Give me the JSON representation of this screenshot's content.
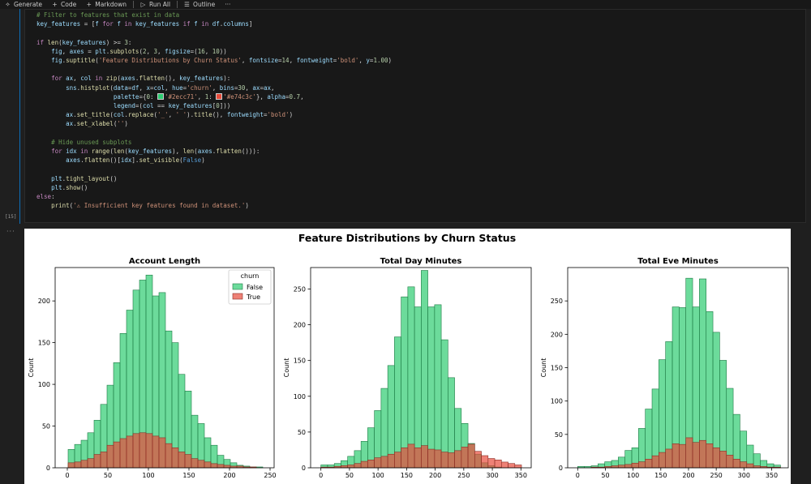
{
  "toolbar": {
    "items": [
      {
        "label": "Generate",
        "icon": "sparkle-icon"
      },
      {
        "label": "Code",
        "icon": "plus-icon"
      },
      {
        "label": "Markdown",
        "icon": "plus-icon"
      },
      {
        "label": "Run All",
        "icon": "run-all-icon"
      },
      {
        "label": "Outline",
        "icon": "list-icon"
      }
    ],
    "more_label": "···"
  },
  "cell": {
    "execution_count": "[15]",
    "output_indicator": "···",
    "code_lines": [
      "# Filter to features that exist in data",
      "key_features = [f for f in key_features if f in df.columns]",
      "",
      "if len(key_features) >= 3:",
      "    fig, axes = plt.subplots(2, 3, figsize=(16, 10))",
      "    fig.suptitle('Feature Distributions by Churn Status', fontsize=14, fontweight='bold', y=1.00)",
      "",
      "    for ax, col in zip(axes.flatten(), key_features):",
      "        sns.histplot(data=df, x=col, hue='churn', bins=30, ax=ax,",
      "                     palette={0: '#2ecc71', 1: '#e74c3c'}, alpha=0.7,",
      "                     legend=(col == key_features[0]))",
      "        ax.set_title(col.replace('_', ' ').title(), fontweight='bold')",
      "        ax.set_xlabel('')",
      "",
      "    # Hide unused subplots",
      "    for idx in range(len(key_features), len(axes.flatten())):",
      "        axes.flatten()[idx].set_visible(False)",
      "",
      "    plt.tight_layout()",
      "    plt.show()",
      "else:",
      "    print('⚠ Insufficient key features found in dataset.')"
    ]
  },
  "colors": {
    "false_fill": "#2ecc71",
    "true_fill": "#e74c3c",
    "false_edge": "#1f7a45",
    "true_edge": "#8b2e25"
  },
  "chart_data": [
    {
      "type": "bar",
      "suptitle": "Feature Distributions by Churn Status",
      "title": "Account Length",
      "ylabel": "Count",
      "xlim": [
        -15,
        255
      ],
      "ylim": [
        0,
        240
      ],
      "xticks": [
        0,
        50,
        100,
        150,
        200,
        250
      ],
      "yticks": [
        0,
        50,
        100,
        150,
        200
      ],
      "bin_start": 1,
      "bin_width": 8,
      "legend": {
        "title": "churn",
        "entries": [
          "False",
          "True"
        ],
        "position": "upper right"
      },
      "series": [
        {
          "name": "False",
          "values": [
            22,
            28,
            33,
            42,
            57,
            76,
            99,
            126,
            161,
            189,
            213,
            225,
            231,
            206,
            210,
            164,
            150,
            112,
            92,
            63,
            53,
            36,
            27,
            15,
            10,
            6,
            3,
            2,
            1,
            1
          ]
        },
        {
          "name": "True",
          "values": [
            6,
            7,
            9,
            11,
            16,
            19,
            27,
            31,
            35,
            38,
            41,
            42,
            41,
            38,
            36,
            29,
            24,
            19,
            16,
            11,
            9,
            7,
            5,
            4,
            3,
            2,
            2,
            1,
            1,
            0
          ]
        }
      ]
    },
    {
      "type": "bar",
      "title": "Total Day Minutes",
      "ylabel": "Count",
      "xlim": [
        -18,
        368
      ],
      "ylim": [
        0,
        280
      ],
      "xticks": [
        0,
        50,
        100,
        150,
        200,
        250,
        300,
        350
      ],
      "yticks": [
        0,
        50,
        100,
        150,
        200,
        250
      ],
      "bin_start": 0,
      "bin_width": 11.7,
      "series": [
        {
          "name": "False",
          "values": [
            4,
            4,
            6,
            10,
            16,
            24,
            37,
            56,
            80,
            111,
            143,
            183,
            239,
            253,
            225,
            276,
            225,
            228,
            179,
            126,
            83,
            62,
            34,
            19,
            7,
            3,
            1,
            0,
            0,
            0
          ]
        },
        {
          "name": "True",
          "values": [
            1,
            1,
            2,
            3,
            4,
            6,
            9,
            11,
            14,
            16,
            19,
            22,
            28,
            33,
            28,
            31,
            26,
            25,
            22,
            21,
            24,
            29,
            33,
            23,
            17,
            13,
            11,
            8,
            6,
            4
          ]
        }
      ]
    },
    {
      "type": "bar",
      "title": "Total Eve Minutes",
      "ylabel": "Count",
      "xlim": [
        -18,
        380
      ],
      "ylim": [
        0,
        300
      ],
      "xticks": [
        0,
        50,
        100,
        150,
        200,
        250,
        300,
        350
      ],
      "yticks": [
        0,
        50,
        100,
        150,
        200,
        250
      ],
      "bin_start": 0,
      "bin_width": 12.2,
      "series": [
        {
          "name": "False",
          "values": [
            2,
            2,
            3,
            6,
            9,
            11,
            16,
            26,
            30,
            59,
            88,
            118,
            162,
            189,
            241,
            240,
            284,
            241,
            283,
            234,
            203,
            161,
            119,
            80,
            55,
            34,
            21,
            11,
            6,
            4
          ]
        },
        {
          "name": "True",
          "values": [
            0,
            0,
            1,
            1,
            2,
            3,
            4,
            5,
            7,
            9,
            13,
            18,
            23,
            28,
            36,
            35,
            45,
            38,
            41,
            36,
            30,
            25,
            19,
            13,
            9,
            6,
            3,
            2,
            1,
            1
          ]
        }
      ]
    }
  ]
}
